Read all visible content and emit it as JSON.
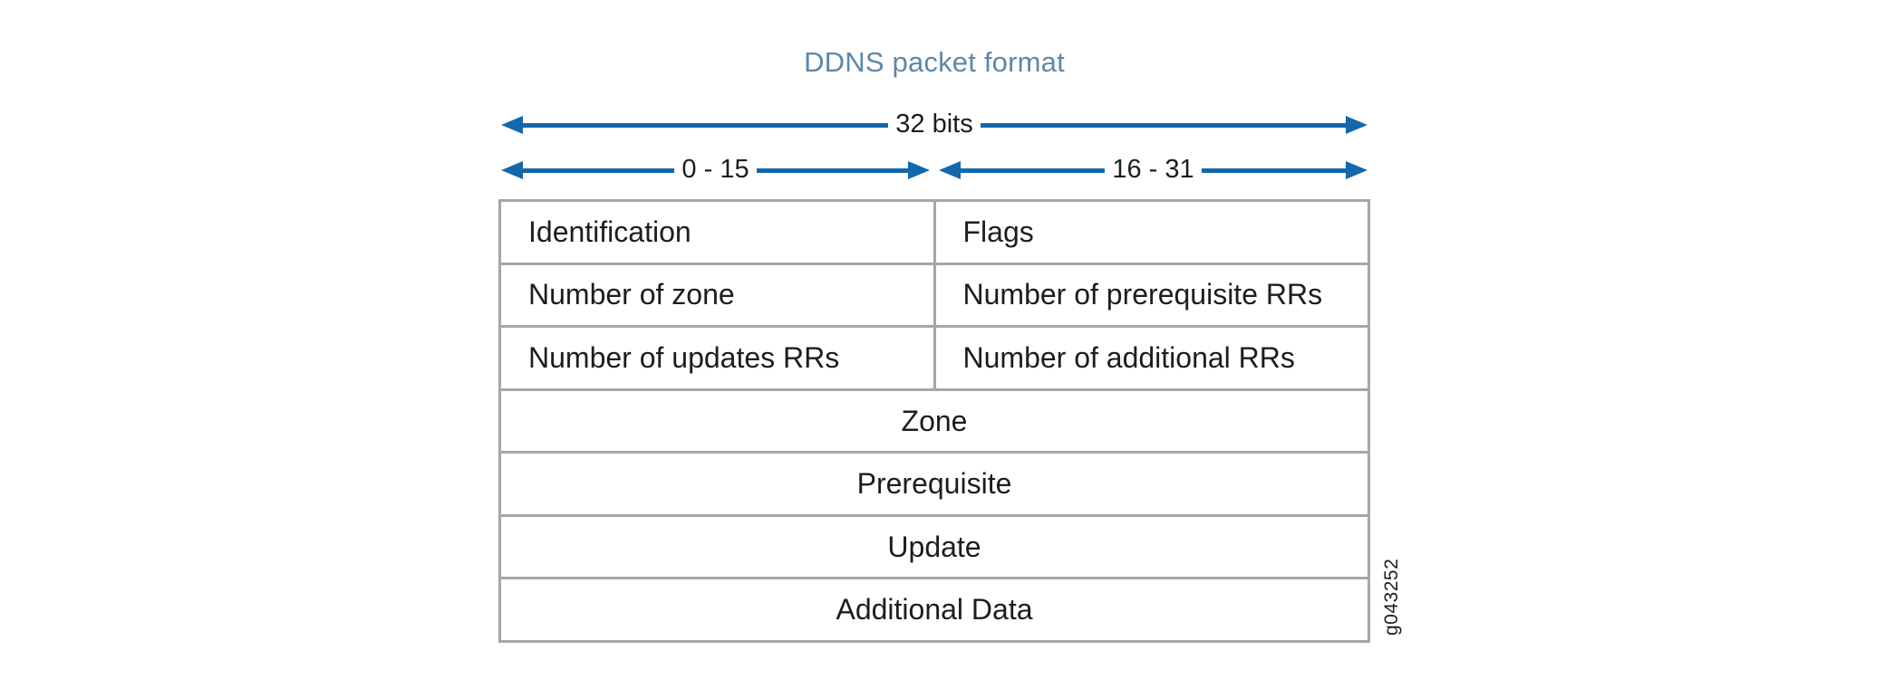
{
  "figure": {
    "title": "DDNS packet format",
    "bit_ruler": {
      "full_span_label": "32 bits",
      "left_span_label": "0 - 15",
      "right_span_label": "16 - 31"
    },
    "packet_fields": {
      "rows": [
        {
          "cells": [
            "Identification",
            "Flags"
          ]
        },
        {
          "cells": [
            "Number of zone",
            "Number of prerequisite RRs"
          ]
        },
        {
          "cells": [
            "Number of updates RRs",
            "Number of additional RRs"
          ]
        },
        {
          "cells": [
            "Zone"
          ]
        },
        {
          "cells": [
            "Prerequisite"
          ]
        },
        {
          "cells": [
            "Update"
          ]
        },
        {
          "cells": [
            "Additional Data"
          ]
        }
      ]
    },
    "figure_id": "g043252",
    "colors": {
      "arrow_blue": "#1268ab",
      "title_blue": "#5f87a8",
      "border_gray": "#a6a6a6",
      "text_black": "#1d1d1b",
      "background": "#ffffff"
    }
  }
}
